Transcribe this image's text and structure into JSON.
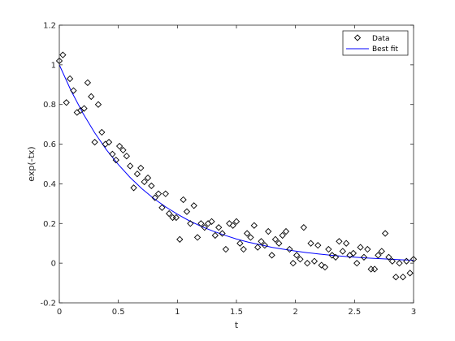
{
  "chart_data": {
    "type": "scatter",
    "xlabel": "t",
    "ylabel": "exp(-tx)",
    "xlim": [
      0,
      3
    ],
    "ylim": [
      -0.2,
      1.2
    ],
    "xticks": [
      0,
      0.5,
      1,
      1.5,
      2,
      2.5,
      3
    ],
    "xtick_labels": [
      "0",
      "0.5",
      "1",
      "1.5",
      "2",
      "2.5",
      "3"
    ],
    "yticks": [
      -0.2,
      0,
      0.2,
      0.4,
      0.6,
      0.8,
      1,
      1.2
    ],
    "ytick_labels": [
      "-0.2",
      "0",
      "0.2",
      "0.4",
      "0.6",
      "0.8",
      "1",
      "1.2"
    ],
    "grid": false,
    "legend_position": "top-right",
    "series": [
      {
        "name": "Data",
        "style": "markers",
        "marker": "diamond",
        "color": "#000000",
        "x": [
          0.0,
          0.03,
          0.06,
          0.09,
          0.12,
          0.15,
          0.18,
          0.21,
          0.24,
          0.27,
          0.3,
          0.33,
          0.36,
          0.39,
          0.42,
          0.45,
          0.48,
          0.51,
          0.54,
          0.57,
          0.6,
          0.63,
          0.66,
          0.69,
          0.72,
          0.75,
          0.78,
          0.81,
          0.84,
          0.87,
          0.9,
          0.93,
          0.96,
          0.99,
          1.02,
          1.05,
          1.08,
          1.11,
          1.14,
          1.17,
          1.2,
          1.23,
          1.26,
          1.29,
          1.32,
          1.35,
          1.38,
          1.41,
          1.44,
          1.47,
          1.5,
          1.53,
          1.56,
          1.59,
          1.62,
          1.65,
          1.68,
          1.71,
          1.74,
          1.77,
          1.8,
          1.83,
          1.86,
          1.89,
          1.92,
          1.95,
          1.98,
          2.01,
          2.04,
          2.07,
          2.1,
          2.13,
          2.16,
          2.19,
          2.22,
          2.25,
          2.28,
          2.31,
          2.34,
          2.37,
          2.4,
          2.43,
          2.46,
          2.49,
          2.52,
          2.55,
          2.58,
          2.61,
          2.64,
          2.67,
          2.7,
          2.73,
          2.76,
          2.79,
          2.82,
          2.85,
          2.88,
          2.91,
          2.94,
          2.97,
          3.0
        ],
        "y": [
          1.02,
          1.05,
          0.81,
          0.93,
          0.87,
          0.76,
          0.77,
          0.78,
          0.91,
          0.84,
          0.61,
          0.8,
          0.66,
          0.6,
          0.61,
          0.55,
          0.52,
          0.59,
          0.57,
          0.54,
          0.49,
          0.38,
          0.45,
          0.48,
          0.41,
          0.43,
          0.39,
          0.33,
          0.35,
          0.28,
          0.35,
          0.25,
          0.23,
          0.23,
          0.12,
          0.32,
          0.26,
          0.2,
          0.29,
          0.13,
          0.2,
          0.18,
          0.2,
          0.21,
          0.14,
          0.18,
          0.15,
          0.07,
          0.2,
          0.19,
          0.21,
          0.1,
          0.07,
          0.15,
          0.13,
          0.19,
          0.08,
          0.11,
          0.09,
          0.16,
          0.04,
          0.12,
          0.1,
          0.14,
          0.16,
          0.07,
          0.0,
          0.04,
          0.02,
          0.18,
          0.0,
          0.1,
          0.01,
          0.09,
          -0.01,
          -0.02,
          0.07,
          0.04,
          0.03,
          0.11,
          0.06,
          0.1,
          0.04,
          0.05,
          0.0,
          0.08,
          0.03,
          0.07,
          -0.03,
          -0.03,
          0.04,
          0.06,
          0.15,
          0.03,
          0.01,
          -0.07,
          0.0,
          -0.07,
          0.01,
          -0.05,
          0.02
        ]
      },
      {
        "name": "Best fit",
        "style": "line",
        "color": "#0000ff",
        "function": "exp(-1.4*t)",
        "x": [
          0,
          0.1,
          0.2,
          0.3,
          0.4,
          0.5,
          0.6,
          0.7,
          0.8,
          0.9,
          1.0,
          1.1,
          1.2,
          1.3,
          1.4,
          1.5,
          1.6,
          1.7,
          1.8,
          1.9,
          2.0,
          2.1,
          2.2,
          2.3,
          2.4,
          2.5,
          2.6,
          2.7,
          2.8,
          2.9,
          3.0
        ],
        "y": [
          1.0,
          0.869,
          0.756,
          0.657,
          0.571,
          0.497,
          0.432,
          0.375,
          0.326,
          0.284,
          0.247,
          0.214,
          0.186,
          0.162,
          0.141,
          0.122,
          0.106,
          0.093,
          0.08,
          0.07,
          0.061,
          0.053,
          0.046,
          0.04,
          0.035,
          0.03,
          0.026,
          0.023,
          0.02,
          0.017,
          0.015
        ]
      }
    ]
  }
}
